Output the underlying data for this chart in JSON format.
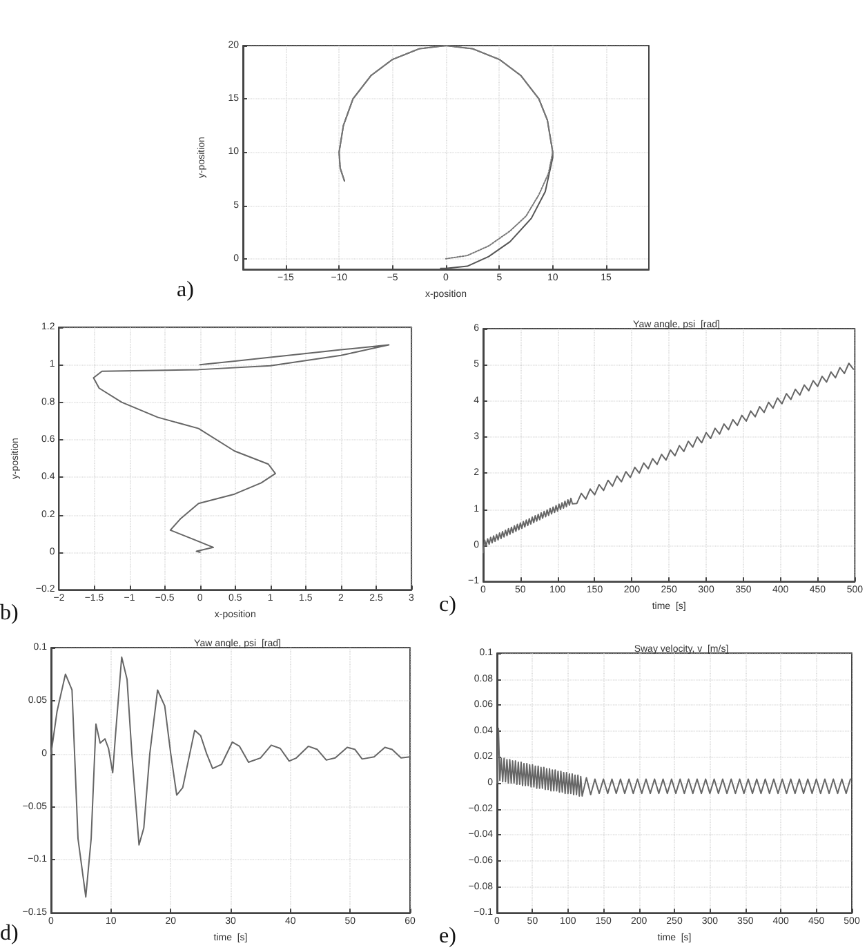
{
  "chart_data": [
    {
      "type": "line",
      "xlabel": "x-position",
      "ylabel": "y-position",
      "xlim": [
        -19,
        19
      ],
      "ylim": [
        -1,
        20
      ],
      "xticks": [
        -15,
        -10,
        -5,
        0,
        5,
        10,
        15
      ],
      "yticks": [
        0,
        5,
        10,
        15,
        20
      ],
      "grid": true,
      "annotations": [
        "a)"
      ],
      "series": [
        {
          "color": "#555555",
          "line_style": "solid",
          "x": [
            -0.5,
            0,
            2,
            4,
            6,
            8,
            9.3,
            10,
            10,
            9.5,
            8.7,
            7,
            5,
            2.5,
            0,
            -2.5,
            -5,
            -7,
            -8.7,
            -9.6,
            -10,
            -9.9,
            -9.5
          ],
          "values": [
            -0.9,
            -0.9,
            -0.7,
            0.2,
            1.6,
            3.8,
            6.3,
            9.5,
            10,
            13,
            15,
            17.2,
            18.7,
            19.7,
            20,
            19.7,
            18.7,
            17.2,
            15,
            12.5,
            10,
            8.5,
            7.3
          ]
        },
        {
          "color": "#777777",
          "line_style": "dotted",
          "x": [
            0,
            2,
            4,
            6,
            7.5,
            8.7,
            9.6,
            10,
            9.5,
            8.7,
            7,
            5,
            2.5,
            0,
            -2.5,
            -5,
            -7,
            -8.7,
            -9.6,
            -10,
            -9.9,
            -9.5
          ],
          "values": [
            0,
            0.3,
            1.2,
            2.6,
            4,
            6,
            8,
            10,
            13,
            15,
            17.2,
            18.7,
            19.7,
            20,
            19.7,
            18.7,
            17.2,
            15,
            12.5,
            10,
            8.5,
            7.3
          ]
        }
      ]
    },
    {
      "type": "line",
      "xlabel": "x-position",
      "ylabel": "y-position",
      "xlim": [
        -2,
        3
      ],
      "ylim": [
        -0.2,
        1.2
      ],
      "xticks": [
        -2,
        -1.5,
        -1,
        -0.5,
        0,
        0.5,
        1,
        1.5,
        2,
        2.5,
        3
      ],
      "yticks": [
        -0.2,
        0,
        0.2,
        0.4,
        0.6,
        0.8,
        1,
        1.2
      ],
      "grid": true,
      "annotations": [
        "b)"
      ],
      "series": [
        {
          "color": "#666666",
          "x": [
            0,
            -0.05,
            0.19,
            -0.1,
            -0.42,
            -0.28,
            -0.02,
            0.49,
            0.87,
            1.07,
            0.97,
            0.49,
            -0.02,
            -0.6,
            -1.11,
            -1.43,
            -1.51,
            -1.39,
            -0.02,
            1,
            2,
            2.68,
            2,
            1,
            0.5,
            0
          ],
          "values": [
            0,
            0.005,
            0.026,
            0.07,
            0.118,
            0.177,
            0.26,
            0.31,
            0.37,
            0.42,
            0.47,
            0.54,
            0.66,
            0.72,
            0.8,
            0.875,
            0.93,
            0.965,
            0.974,
            0.995,
            1.05,
            1.106,
            1.08,
            1.04,
            1.02,
            1
          ]
        }
      ]
    },
    {
      "type": "line",
      "title": "Yaw angle, psi  [rad]",
      "xlabel": "time  [s]",
      "xlim": [
        0,
        500
      ],
      "ylim": [
        -1,
        6
      ],
      "xticks": [
        0,
        50,
        100,
        150,
        200,
        250,
        300,
        350,
        400,
        450,
        500
      ],
      "yticks": [
        -1,
        0,
        1,
        2,
        3,
        4,
        5,
        6
      ],
      "grid": true,
      "annotations": [
        "c)"
      ],
      "series": [
        {
          "color": "#666666",
          "x": [
            0,
            2,
            4,
            6,
            8,
            10,
            12,
            14,
            16,
            18,
            20,
            22,
            24,
            26,
            28,
            30,
            32,
            34,
            36,
            38,
            40,
            42,
            44,
            46,
            48,
            50,
            52,
            54,
            56,
            58,
            60,
            62,
            64,
            66,
            68,
            70,
            72,
            74,
            76,
            78,
            80,
            82,
            84,
            86,
            88,
            90,
            92,
            94,
            96,
            98,
            100,
            102,
            104,
            106,
            108,
            110,
            112,
            114,
            116,
            118,
            120,
            126,
            132,
            138,
            144,
            150,
            156,
            162,
            168,
            174,
            180,
            186,
            192,
            198,
            204,
            210,
            216,
            222,
            228,
            234,
            240,
            246,
            252,
            258,
            264,
            270,
            276,
            282,
            288,
            294,
            300,
            306,
            312,
            318,
            324,
            330,
            336,
            342,
            348,
            354,
            360,
            366,
            372,
            378,
            384,
            390,
            396,
            402,
            408,
            414,
            420,
            426,
            432,
            438,
            444,
            450,
            456,
            462,
            468,
            474,
            480,
            486,
            492,
            498
          ],
          "values": [
            -0.2,
            0.14,
            -0.01,
            0.18,
            0.03,
            0.22,
            0.07,
            0.26,
            0.11,
            0.3,
            0.15,
            0.34,
            0.19,
            0.38,
            0.23,
            0.42,
            0.27,
            0.46,
            0.31,
            0.5,
            0.35,
            0.54,
            0.39,
            0.58,
            0.43,
            0.62,
            0.47,
            0.66,
            0.51,
            0.7,
            0.55,
            0.74,
            0.59,
            0.78,
            0.63,
            0.82,
            0.67,
            0.86,
            0.71,
            0.9,
            0.75,
            0.94,
            0.79,
            0.98,
            0.83,
            1.02,
            0.87,
            1.06,
            0.91,
            1.1,
            0.95,
            1.14,
            0.99,
            1.18,
            1.03,
            1.22,
            1.07,
            1.26,
            1.11,
            1.3,
            1.15,
            1.16,
            1.44,
            1.28,
            1.56,
            1.4,
            1.68,
            1.52,
            1.8,
            1.64,
            1.92,
            1.76,
            2.04,
            1.88,
            2.16,
            2,
            2.28,
            2.12,
            2.4,
            2.24,
            2.52,
            2.36,
            2.64,
            2.48,
            2.76,
            2.6,
            2.88,
            2.72,
            3,
            2.84,
            3.12,
            2.96,
            3.24,
            3.08,
            3.36,
            3.2,
            3.48,
            3.32,
            3.6,
            3.44,
            3.72,
            3.56,
            3.84,
            3.68,
            3.96,
            3.8,
            4.08,
            3.92,
            4.2,
            4.04,
            4.32,
            4.16,
            4.44,
            4.28,
            4.56,
            4.4,
            4.68,
            4.52,
            4.8,
            4.64,
            4.92,
            4.76,
            5.04,
            4.88
          ]
        }
      ]
    },
    {
      "type": "line",
      "title": "Yaw angle, psi  [rad]",
      "xlabel": "time  [s]",
      "xlim": [
        0,
        60
      ],
      "ylim": [
        -0.15,
        0.1
      ],
      "xticks": [
        0,
        10,
        20,
        30,
        40,
        50,
        60
      ],
      "yticks": [
        -0.15,
        -0.1,
        -0.05,
        0,
        0.05,
        0.1
      ],
      "grid": true,
      "annotations": [
        "d)"
      ],
      "series": [
        {
          "color": "#666666",
          "x": [
            0,
            1,
            2.4,
            3.5,
            4.5,
            5.8,
            6.7,
            7.5,
            8.2,
            9,
            9.6,
            10.3,
            10.8,
            11.8,
            12.7,
            13.5,
            14.7,
            15.5,
            16.5,
            17.8,
            19,
            20,
            21,
            22,
            23,
            24,
            25,
            26,
            27,
            28.5,
            30.3,
            31.5,
            33,
            35,
            36.8,
            38.3,
            39.8,
            41,
            43,
            44.5,
            46,
            47.5,
            49.5,
            50.8,
            52,
            54,
            55.8,
            57,
            58.5,
            60
          ],
          "values": [
            0,
            0.04,
            0.075,
            0.06,
            -0.08,
            -0.135,
            -0.08,
            0.028,
            0.01,
            0.014,
            0.005,
            -0.018,
            0.02,
            0.091,
            0.07,
            0,
            -0.086,
            -0.07,
            0,
            0.06,
            0.045,
            0,
            -0.039,
            -0.032,
            -0.005,
            0.022,
            0.017,
            0,
            -0.014,
            -0.01,
            0.011,
            0.007,
            -0.008,
            -0.004,
            0.008,
            0.005,
            -0.007,
            -0.004,
            0.007,
            0.004,
            -0.006,
            -0.004,
            0.006,
            0.004,
            -0.005,
            -0.003,
            0.006,
            0.004,
            -0.004,
            -0.003
          ]
        }
      ]
    },
    {
      "type": "line",
      "title": "Sway velocity, v  [m/s]",
      "xlabel": "time  [s]",
      "xlim": [
        0,
        500
      ],
      "ylim": [
        -0.1,
        0.1
      ],
      "xticks": [
        0,
        50,
        100,
        150,
        200,
        250,
        300,
        350,
        400,
        450,
        500
      ],
      "yticks": [
        -0.1,
        -0.08,
        -0.06,
        -0.04,
        -0.02,
        0,
        0.02,
        0.04,
        0.06,
        0.08,
        0.1
      ],
      "grid": true,
      "annotations": [
        "e)"
      ],
      "series": [
        {
          "color": "#666666",
          "x": [
            0,
            2,
            4,
            6,
            8,
            10,
            12,
            14,
            16,
            18,
            20,
            22,
            24,
            26,
            28,
            30,
            32,
            34,
            36,
            38,
            40,
            42,
            44,
            46,
            48,
            50,
            52,
            54,
            56,
            58,
            60,
            62,
            64,
            66,
            68,
            70,
            72,
            74,
            76,
            78,
            80,
            82,
            84,
            86,
            88,
            90,
            92,
            94,
            96,
            98,
            100,
            102,
            104,
            106,
            108,
            110,
            112,
            114,
            116,
            118,
            120,
            126,
            132,
            138,
            144,
            150,
            156,
            162,
            168,
            174,
            180,
            186,
            192,
            198,
            204,
            210,
            216,
            222,
            228,
            234,
            240,
            246,
            252,
            258,
            264,
            270,
            276,
            282,
            288,
            294,
            300,
            306,
            312,
            318,
            324,
            330,
            336,
            342,
            348,
            354,
            360,
            366,
            372,
            378,
            384,
            390,
            396,
            402,
            408,
            414,
            420,
            426,
            432,
            438,
            444,
            450,
            456,
            462,
            468,
            474,
            480,
            486,
            492,
            498
          ],
          "values": [
            0,
            0.042,
            0.002,
            0.019,
            0.001,
            0.019,
            0.001,
            0.018,
            0,
            0.018,
            0,
            0.017,
            0,
            0.017,
            -0.001,
            0.016,
            -0.001,
            0.016,
            -0.002,
            0.015,
            -0.002,
            0.015,
            -0.002,
            0.014,
            -0.003,
            0.014,
            -0.003,
            0.013,
            -0.004,
            0.013,
            -0.004,
            0.012,
            -0.004,
            0.012,
            -0.005,
            0.011,
            -0.005,
            0.011,
            -0.006,
            0.01,
            -0.006,
            0.01,
            -0.006,
            0.009,
            -0.007,
            0.009,
            -0.007,
            0.008,
            -0.008,
            0.008,
            -0.008,
            0.007,
            -0.008,
            0.007,
            -0.009,
            0.006,
            -0.009,
            0.006,
            -0.01,
            0.005,
            -0.01,
            0.004,
            -0.009,
            0.003,
            -0.008,
            0.003,
            -0.008,
            0.003,
            -0.008,
            0.003,
            -0.008,
            0.003,
            -0.008,
            0.003,
            -0.008,
            0.003,
            -0.008,
            0.003,
            -0.008,
            0.003,
            -0.008,
            0.003,
            -0.008,
            0.003,
            -0.008,
            0.003,
            -0.008,
            0.003,
            -0.008,
            0.003,
            -0.008,
            0.003,
            -0.008,
            0.003,
            -0.008,
            0.003,
            -0.008,
            0.003,
            -0.008,
            0.003,
            -0.008,
            0.003,
            -0.008,
            0.003,
            -0.008,
            0.003,
            -0.008,
            0.003,
            -0.008,
            0.003,
            -0.008,
            0.003,
            -0.008,
            0.003,
            -0.008,
            0.003,
            -0.008,
            0.003,
            -0.008,
            0.003,
            -0.008,
            0.003,
            -0.008,
            0.003
          ]
        }
      ]
    }
  ]
}
